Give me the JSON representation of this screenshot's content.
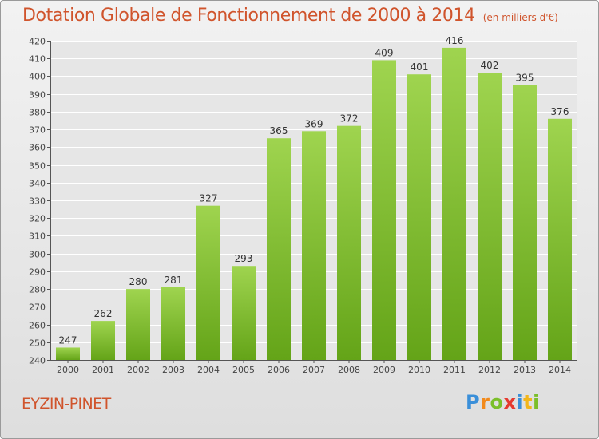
{
  "title": "Dotation Globale de Fonctionnement de 2000 à 2014",
  "unit": "(en milliers d'€)",
  "commune": "EYZIN-PINET",
  "logo": {
    "letters": [
      "P",
      "r",
      "o",
      "x",
      "i",
      "t",
      "i"
    ],
    "colors": [
      "#3a8fd9",
      "#f28a1c",
      "#7bbf2a",
      "#e53a2f",
      "#3a8fd9",
      "#f2b61c",
      "#7bbf2a"
    ]
  },
  "colors": {
    "title": "#d0542c",
    "bar_top": "#9fd44f",
    "bar_bottom": "#64a418",
    "grid": "#ffffff"
  },
  "chart_data": {
    "type": "bar",
    "categories": [
      "2000",
      "2001",
      "2002",
      "2003",
      "2004",
      "2005",
      "2006",
      "2007",
      "2008",
      "2009",
      "2010",
      "2011",
      "2012",
      "2013",
      "2014"
    ],
    "values": [
      247,
      262,
      280,
      281,
      327,
      293,
      365,
      369,
      372,
      409,
      401,
      416,
      402,
      395,
      376
    ],
    "ylim": [
      240,
      420
    ],
    "ytick_step": 10,
    "grid": true,
    "xlabel": "",
    "ylabel": ""
  }
}
